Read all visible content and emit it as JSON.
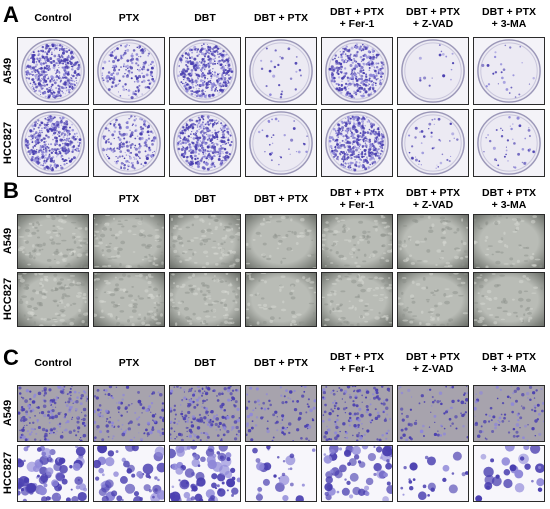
{
  "conditions": [
    "Control",
    "PTX",
    "DBT",
    "DBT + PTX",
    "DBT + PTX\n+ Fer-1",
    "DBT + PTX\n+ Z-VAD",
    "DBT + PTX\n+ 3-MA"
  ],
  "cell_lines": [
    "A549",
    "HCC827"
  ],
  "panels": [
    {
      "letter": "A",
      "assay": "colony-formation-dish",
      "density": {
        "A549": [
          0.9,
          0.35,
          0.85,
          0.05,
          0.75,
          0.03,
          0.05
        ],
        "HCC827": [
          0.85,
          0.4,
          0.8,
          0.06,
          0.9,
          0.08,
          0.08
        ]
      }
    },
    {
      "letter": "B",
      "assay": "brightfield-microscopy",
      "density": {
        "A549": [
          0.7,
          0.6,
          0.7,
          0.35,
          0.6,
          0.4,
          0.4
        ],
        "HCC827": [
          0.75,
          0.6,
          0.7,
          0.35,
          0.6,
          0.4,
          0.4
        ]
      }
    },
    {
      "letter": "C",
      "assay": "transwell-stain",
      "density": {
        "A549": [
          0.8,
          0.5,
          0.8,
          0.35,
          0.6,
          0.3,
          0.35
        ],
        "HCC827": [
          0.9,
          0.6,
          0.85,
          0.3,
          0.65,
          0.25,
          0.3
        ]
      }
    }
  ],
  "colors": {
    "stain": "#4a3fb0",
    "stain_light": "#8f88d8",
    "dish_bg": "#eceaf3",
    "micro_bg": "#b9bcb6",
    "micro_dark": "#5e625c",
    "transwell_a549_bg": "#a7a3ad",
    "transwell_hcc_bg": "#f7f6fb"
  }
}
